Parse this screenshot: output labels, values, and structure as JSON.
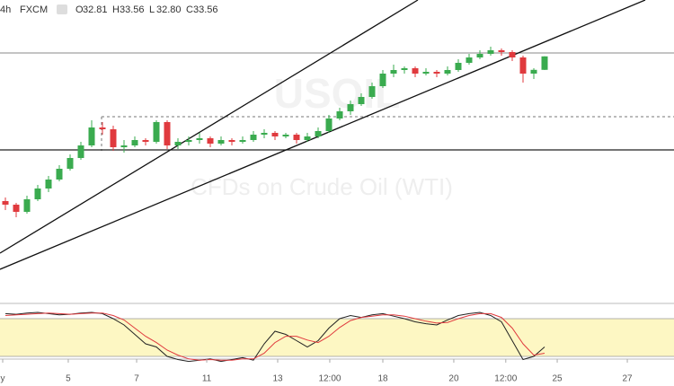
{
  "header": {
    "interval": "4h",
    "exchange": "FXCM",
    "ohlc": [
      [
        "O",
        "32.81"
      ],
      [
        "H",
        "33.56"
      ],
      [
        "L",
        "32.80"
      ],
      [
        "C",
        "33.56"
      ]
    ]
  },
  "watermark": {
    "symbol": "USOIL",
    "description": "CFDs on Crude Oil (WTI)"
  },
  "chart_data": [
    {
      "type": "candlestick",
      "up_color": "#3aab4f",
      "down_color": "#e03a3e",
      "xlim": [
        -0.5,
        62
      ],
      "ylim": [
        20.2,
        36.7
      ],
      "xticks": [
        {
          "value": -0.25,
          "label": "y"
        },
        {
          "value": 5.83,
          "label": "5"
        },
        {
          "value": 12.17,
          "label": "7"
        },
        {
          "value": 18.67,
          "label": "11"
        },
        {
          "value": 25.25,
          "label": "13"
        },
        {
          "value": 30.08,
          "label": "12:00"
        },
        {
          "value": 35,
          "label": "18"
        },
        {
          "value": 41.58,
          "label": "20"
        },
        {
          "value": 46.4,
          "label": "12:00"
        },
        {
          "value": 51.17,
          "label": "25"
        },
        {
          "value": 57.67,
          "label": "27"
        }
      ],
      "open": [
        25.5,
        25.3,
        24.9,
        25.6,
        26.2,
        26.7,
        27.3,
        27.9,
        28.6,
        29.6,
        29.5,
        28.5,
        28.6,
        28.9,
        28.8,
        29.9,
        28.6,
        28.8,
        28.9,
        29.0,
        28.7,
        28.9,
        28.8,
        28.9,
        29.2,
        29.3,
        29.1,
        29.2,
        28.9,
        29.1,
        29.4,
        30.1,
        30.5,
        30.9,
        31.3,
        31.9,
        32.6,
        32.8,
        32.9,
        32.6,
        32.7,
        32.6,
        32.8,
        33.2,
        33.5,
        33.7,
        33.9,
        33.8,
        33.5,
        32.6,
        32.81
      ],
      "high": [
        25.7,
        25.4,
        25.8,
        26.4,
        26.9,
        27.5,
        28.1,
        28.8,
        30.0,
        29.9,
        29.7,
        28.9,
        29.1,
        29.0,
        30.0,
        30.0,
        29.0,
        29.1,
        29.3,
        29.1,
        29.1,
        29.0,
        29.1,
        29.4,
        29.5,
        29.4,
        29.3,
        29.3,
        29.3,
        29.6,
        30.3,
        30.7,
        31.1,
        31.5,
        32.1,
        32.8,
        33.1,
        33.0,
        33.0,
        32.9,
        32.8,
        33.0,
        33.4,
        33.7,
        33.9,
        34.1,
        34.0,
        33.9,
        33.6,
        32.9,
        33.56
      ],
      "low": [
        25.0,
        24.6,
        24.8,
        25.5,
        26.0,
        26.6,
        27.2,
        27.8,
        28.5,
        29.2,
        28.3,
        28.2,
        28.5,
        28.6,
        28.7,
        28.4,
        28.4,
        28.6,
        28.7,
        28.5,
        28.6,
        28.6,
        28.7,
        28.8,
        29.0,
        28.9,
        29.0,
        28.7,
        28.8,
        29.0,
        29.3,
        30.0,
        30.3,
        30.8,
        31.2,
        31.8,
        32.4,
        32.6,
        32.4,
        32.5,
        32.4,
        32.5,
        32.7,
        33.1,
        33.4,
        33.6,
        33.6,
        33.3,
        32.1,
        32.3,
        32.8
      ],
      "close": [
        25.3,
        24.9,
        25.6,
        26.2,
        26.7,
        27.3,
        27.9,
        28.6,
        29.6,
        29.5,
        28.5,
        28.6,
        28.9,
        28.8,
        29.9,
        28.6,
        28.8,
        28.9,
        29.0,
        28.7,
        28.9,
        28.8,
        28.9,
        29.2,
        29.3,
        29.1,
        29.2,
        28.9,
        29.1,
        29.4,
        30.1,
        30.5,
        30.9,
        31.3,
        31.9,
        32.6,
        32.8,
        32.9,
        32.6,
        32.7,
        32.6,
        32.8,
        33.2,
        33.5,
        33.7,
        33.9,
        33.8,
        33.5,
        32.6,
        32.81,
        33.56
      ]
    },
    {
      "type": "oscillator",
      "ylim": [
        0,
        100
      ],
      "bands": [
        20,
        80
      ],
      "band_color": "#fdf7c3",
      "series": [
        {
          "color": "#222222",
          "values": [
            88,
            87,
            89,
            90,
            88,
            86,
            87,
            89,
            90,
            88,
            80,
            70,
            55,
            40,
            35,
            20,
            15,
            12,
            14,
            16,
            12,
            15,
            18,
            14,
            40,
            60,
            55,
            45,
            35,
            45,
            65,
            80,
            85,
            82,
            86,
            88,
            84,
            80,
            75,
            72,
            70,
            78,
            85,
            88,
            90,
            85,
            75,
            45,
            15,
            20,
            35
          ]
        },
        {
          "color": "#e03a3e",
          "values": [
            85,
            86,
            87,
            88,
            89,
            88,
            87,
            88,
            89,
            89,
            85,
            78,
            65,
            52,
            42,
            30,
            22,
            16,
            14,
            15,
            14,
            14,
            16,
            16,
            25,
            42,
            52,
            52,
            46,
            42,
            52,
            66,
            77,
            82,
            84,
            86,
            86,
            84,
            80,
            76,
            73,
            74,
            80,
            85,
            88,
            88,
            82,
            65,
            40,
            22,
            25
          ]
        }
      ]
    }
  ]
}
